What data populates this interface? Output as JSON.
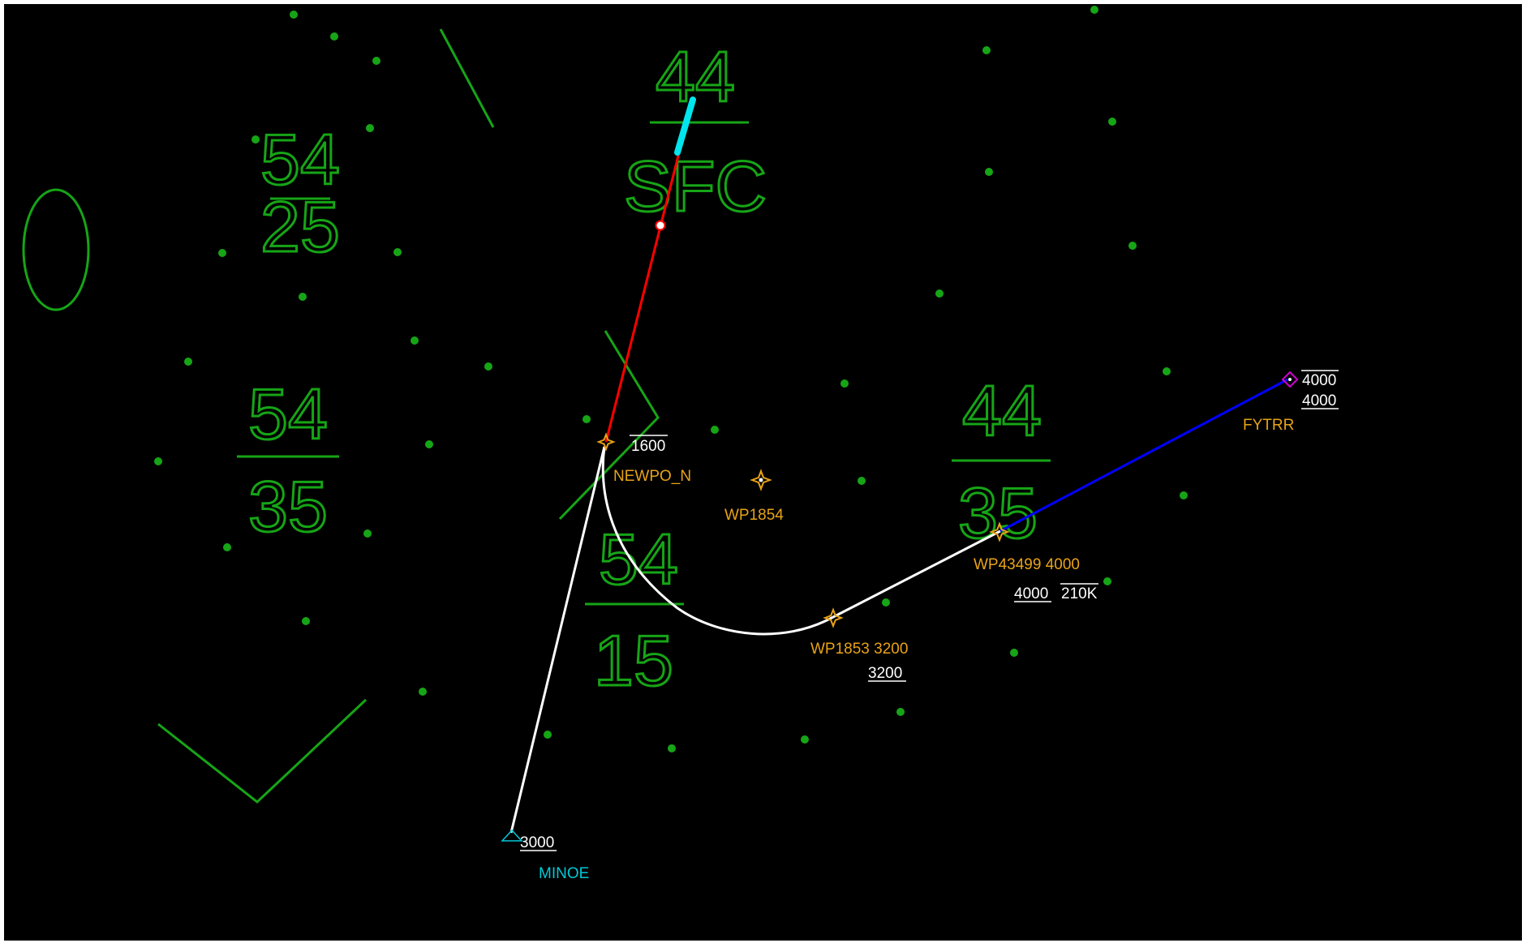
{
  "colors": {
    "background": "#000000",
    "video_map": "#16a516",
    "waypoint": "#e8a317",
    "route_white": "#ffffff",
    "active_leg": "#ff0000",
    "next_leg": "#0000ff",
    "aircraft": "#00e5ee",
    "start_fix": "#00c8d8",
    "end_fix": "#d000d0"
  },
  "altitude_blocks": [
    {
      "top": "54",
      "bottom": "25"
    },
    {
      "top": "54",
      "bottom": "35"
    },
    {
      "top": "44",
      "bottom": "SFC"
    },
    {
      "top": "54",
      "bottom": "15"
    },
    {
      "top": "44",
      "bottom": "35"
    }
  ],
  "fixes": {
    "minoe": {
      "name": "MINOE",
      "altitude": "3000",
      "icon": "triangle-icon"
    },
    "newpo": {
      "name": "NEWPO_N",
      "altitude": "1600",
      "icon": "waypoint-star-icon"
    },
    "wp1854": {
      "name": "WP1854",
      "icon": "waypoint-star-icon"
    },
    "wp1853": {
      "name": "WP1853 3200",
      "altitude": "3200",
      "icon": "waypoint-star-icon"
    },
    "wp43499": {
      "name": "WP43499 4000",
      "altitude": "4000",
      "speed": "210K",
      "icon": "waypoint-star-icon"
    },
    "fytrr": {
      "name": "FYTRR",
      "altitude_top": "4000",
      "altitude_bottom": "4000",
      "icon": "diamond-icon"
    }
  }
}
